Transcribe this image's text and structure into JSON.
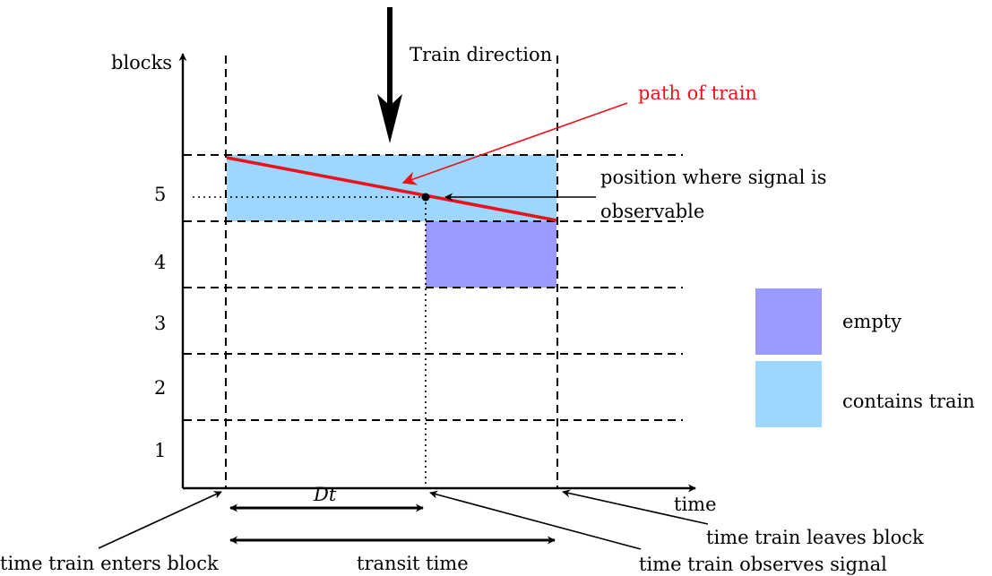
{
  "axes": {
    "y_label": "blocks",
    "x_label": "time"
  },
  "block_labels": [
    "1",
    "2",
    "3",
    "4",
    "5"
  ],
  "labels": {
    "train_direction": "Train direction",
    "path_of_train": "path of train",
    "signal_position_line1": "position where signal is",
    "signal_position_line2": "observable",
    "time_enters": "time train enters block",
    "time_leaves": "time train leaves block",
    "time_observes": "time train observes signal",
    "transit_time": "transit time",
    "dt": "Dt"
  },
  "legend": {
    "empty": "empty",
    "contains_train": "contains train"
  },
  "colors": {
    "empty": "#9b9bff",
    "contains_train": "#9fd6fd",
    "path": "#e8141c",
    "path_label": "#e8141c"
  }
}
